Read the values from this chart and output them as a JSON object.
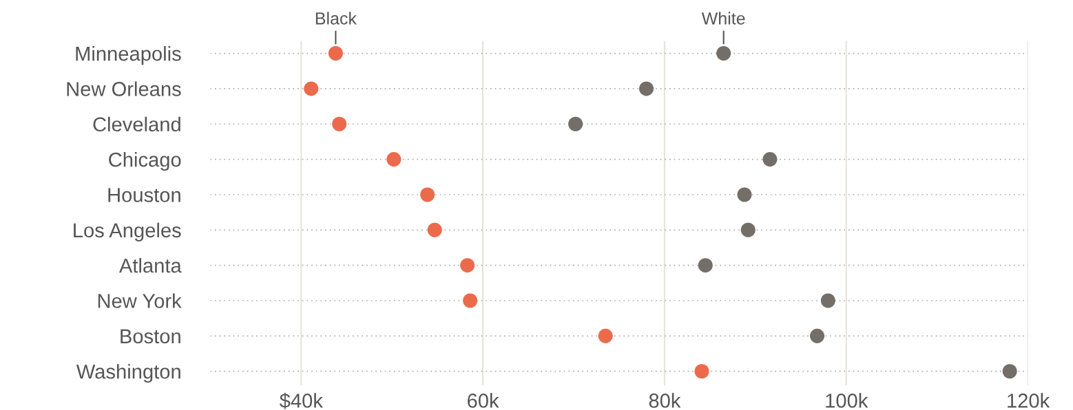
{
  "chart_data": {
    "type": "scatter",
    "categories": [
      "Minneapolis",
      "New Orleans",
      "Cleveland",
      "Chicago",
      "Houston",
      "Los Angeles",
      "Atlanta",
      "New York",
      "Boston",
      "Washington"
    ],
    "orientation": "horizontal",
    "series": [
      {
        "name": "Black",
        "color": "#ec6a4c",
        "values": [
          43.8,
          41.1,
          44.2,
          50.2,
          53.9,
          54.7,
          58.3,
          58.6,
          73.5,
          84.1
        ]
      },
      {
        "name": "White",
        "color": "#746e68",
        "values": [
          86.5,
          78.0,
          70.2,
          91.6,
          88.8,
          89.2,
          84.5,
          98.0,
          96.8,
          118.0
        ]
      }
    ],
    "xlim": [
      30,
      120
    ],
    "xticks": [
      {
        "value": 40,
        "label": "$40k"
      },
      {
        "value": 60,
        "label": "60k"
      },
      {
        "value": 80,
        "label": "80k"
      },
      {
        "value": 100,
        "label": "100k"
      },
      {
        "value": 120,
        "label": "120k"
      }
    ],
    "grid": true,
    "legend": false,
    "marker": "circle"
  }
}
